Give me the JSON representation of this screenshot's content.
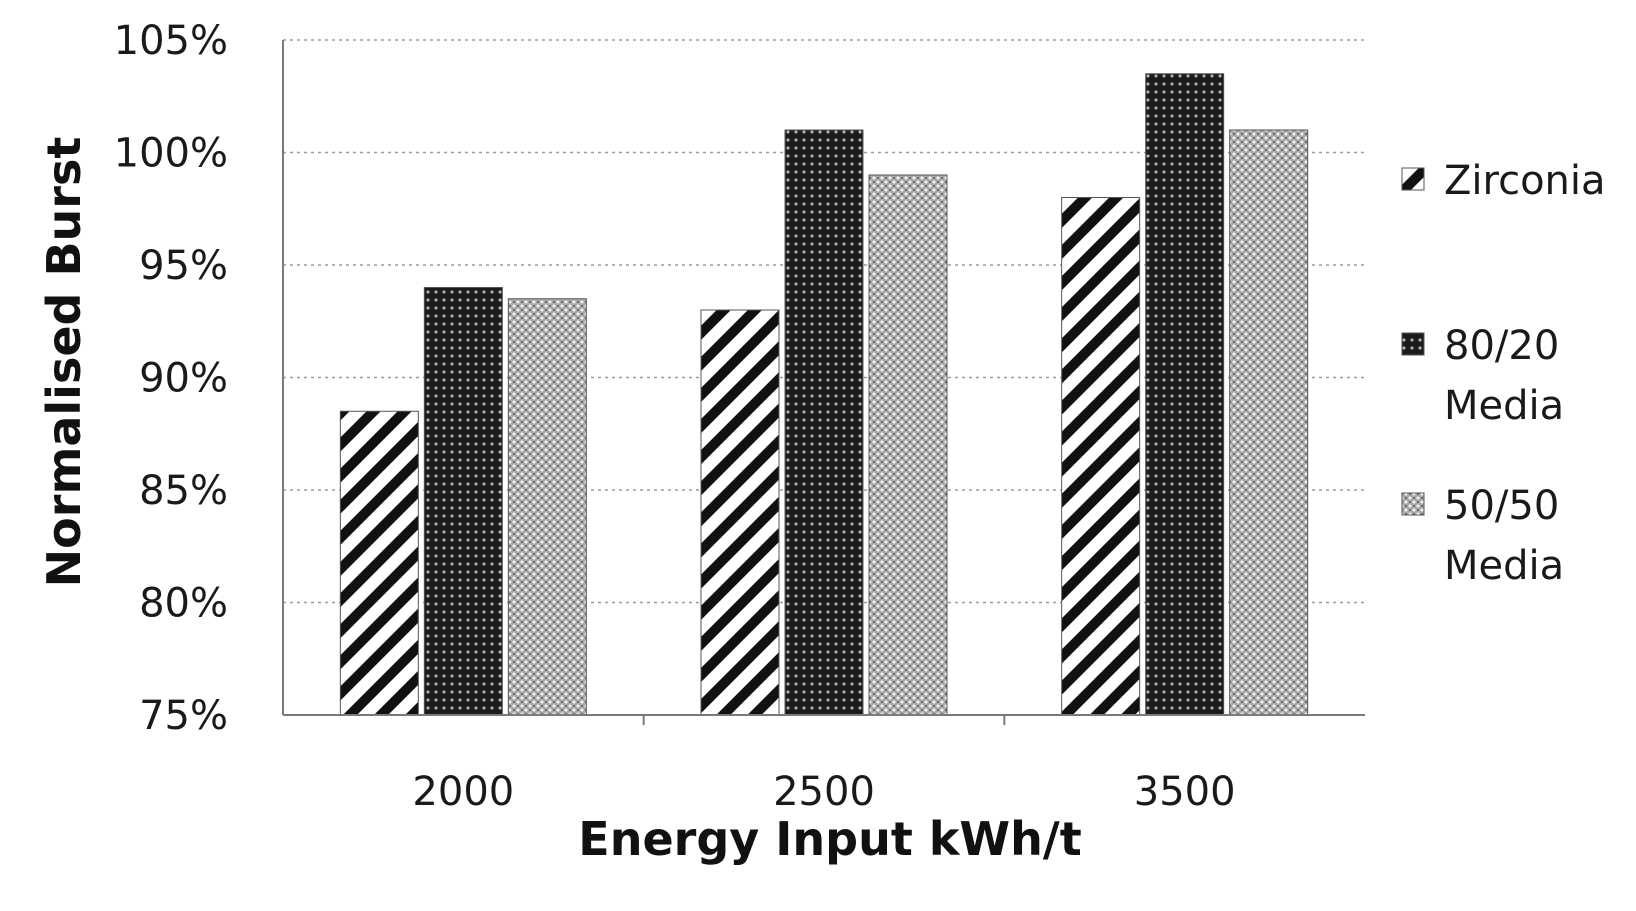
{
  "chart_data": {
    "type": "bar",
    "title": "",
    "xlabel": "Energy Input kWh/t",
    "ylabel": "Normalised Burst",
    "categories": [
      "2000",
      "2500",
      "3500"
    ],
    "ylim": [
      75,
      105
    ],
    "yticks": [
      75,
      80,
      85,
      90,
      95,
      100,
      105
    ],
    "ytick_labels": [
      "75%",
      "80%",
      "85%",
      "90%",
      "95%",
      "100%",
      "105%"
    ],
    "grid": true,
    "legend_position": "right",
    "series": [
      {
        "name": "Zirconia",
        "pattern": "diagonal-stripes",
        "values": [
          88.5,
          93.0,
          98.0
        ]
      },
      {
        "name": "80/20 Media",
        "pattern": "dark-dots",
        "values": [
          94.0,
          101.0,
          103.5
        ]
      },
      {
        "name": "50/50 Media",
        "pattern": "light-crosshatch",
        "values": [
          93.5,
          99.0,
          101.0
        ]
      }
    ],
    "legend": [
      {
        "lines": [
          "Zirconia"
        ]
      },
      {
        "lines": [
          "80/20",
          "Media"
        ]
      },
      {
        "lines": [
          "50/50",
          "Media"
        ]
      }
    ]
  }
}
